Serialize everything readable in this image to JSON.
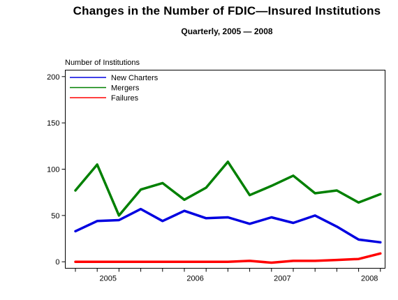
{
  "chart_data": {
    "type": "line",
    "title": "Changes in the Number of FDIC—Insured Institutions",
    "subtitle": "Quarterly, 2005 — 2008",
    "ylabel": "Number of Institutions",
    "xlabel": "",
    "ylim": [
      -7,
      207
    ],
    "yticks": [
      0,
      50,
      100,
      150,
      200
    ],
    "xticks": [
      {
        "label": "2005",
        "quarter_index": 1
      },
      {
        "label": "2006",
        "quarter_index": 5
      },
      {
        "label": "2007",
        "quarter_index": 9
      },
      {
        "label": "2008",
        "quarter_index": 13
      }
    ],
    "x": [
      "2005 Q1",
      "2005 Q2",
      "2005 Q3",
      "2005 Q4",
      "2006 Q1",
      "2006 Q2",
      "2006 Q3",
      "2006 Q4",
      "2007 Q1",
      "2007 Q2",
      "2007 Q3",
      "2007 Q4",
      "2008 Q1",
      "2008 Q2",
      "2008 Q3"
    ],
    "legend_position": "top-left",
    "grid": false,
    "series": [
      {
        "name": "New Charters",
        "color": "#0000e0",
        "values": [
          33,
          44,
          45,
          57,
          44,
          55,
          47,
          48,
          41,
          48,
          42,
          50,
          38,
          24,
          21
        ]
      },
      {
        "name": "Mergers",
        "color": "#008000",
        "values": [
          77,
          105,
          50,
          78,
          85,
          67,
          80,
          108,
          72,
          82,
          93,
          74,
          77,
          64,
          73
        ]
      },
      {
        "name": "Failures",
        "color": "#ff0000",
        "values": [
          0,
          0,
          0,
          0,
          0,
          0,
          0,
          0,
          1,
          -1,
          1,
          1,
          2,
          3,
          9
        ]
      }
    ]
  }
}
